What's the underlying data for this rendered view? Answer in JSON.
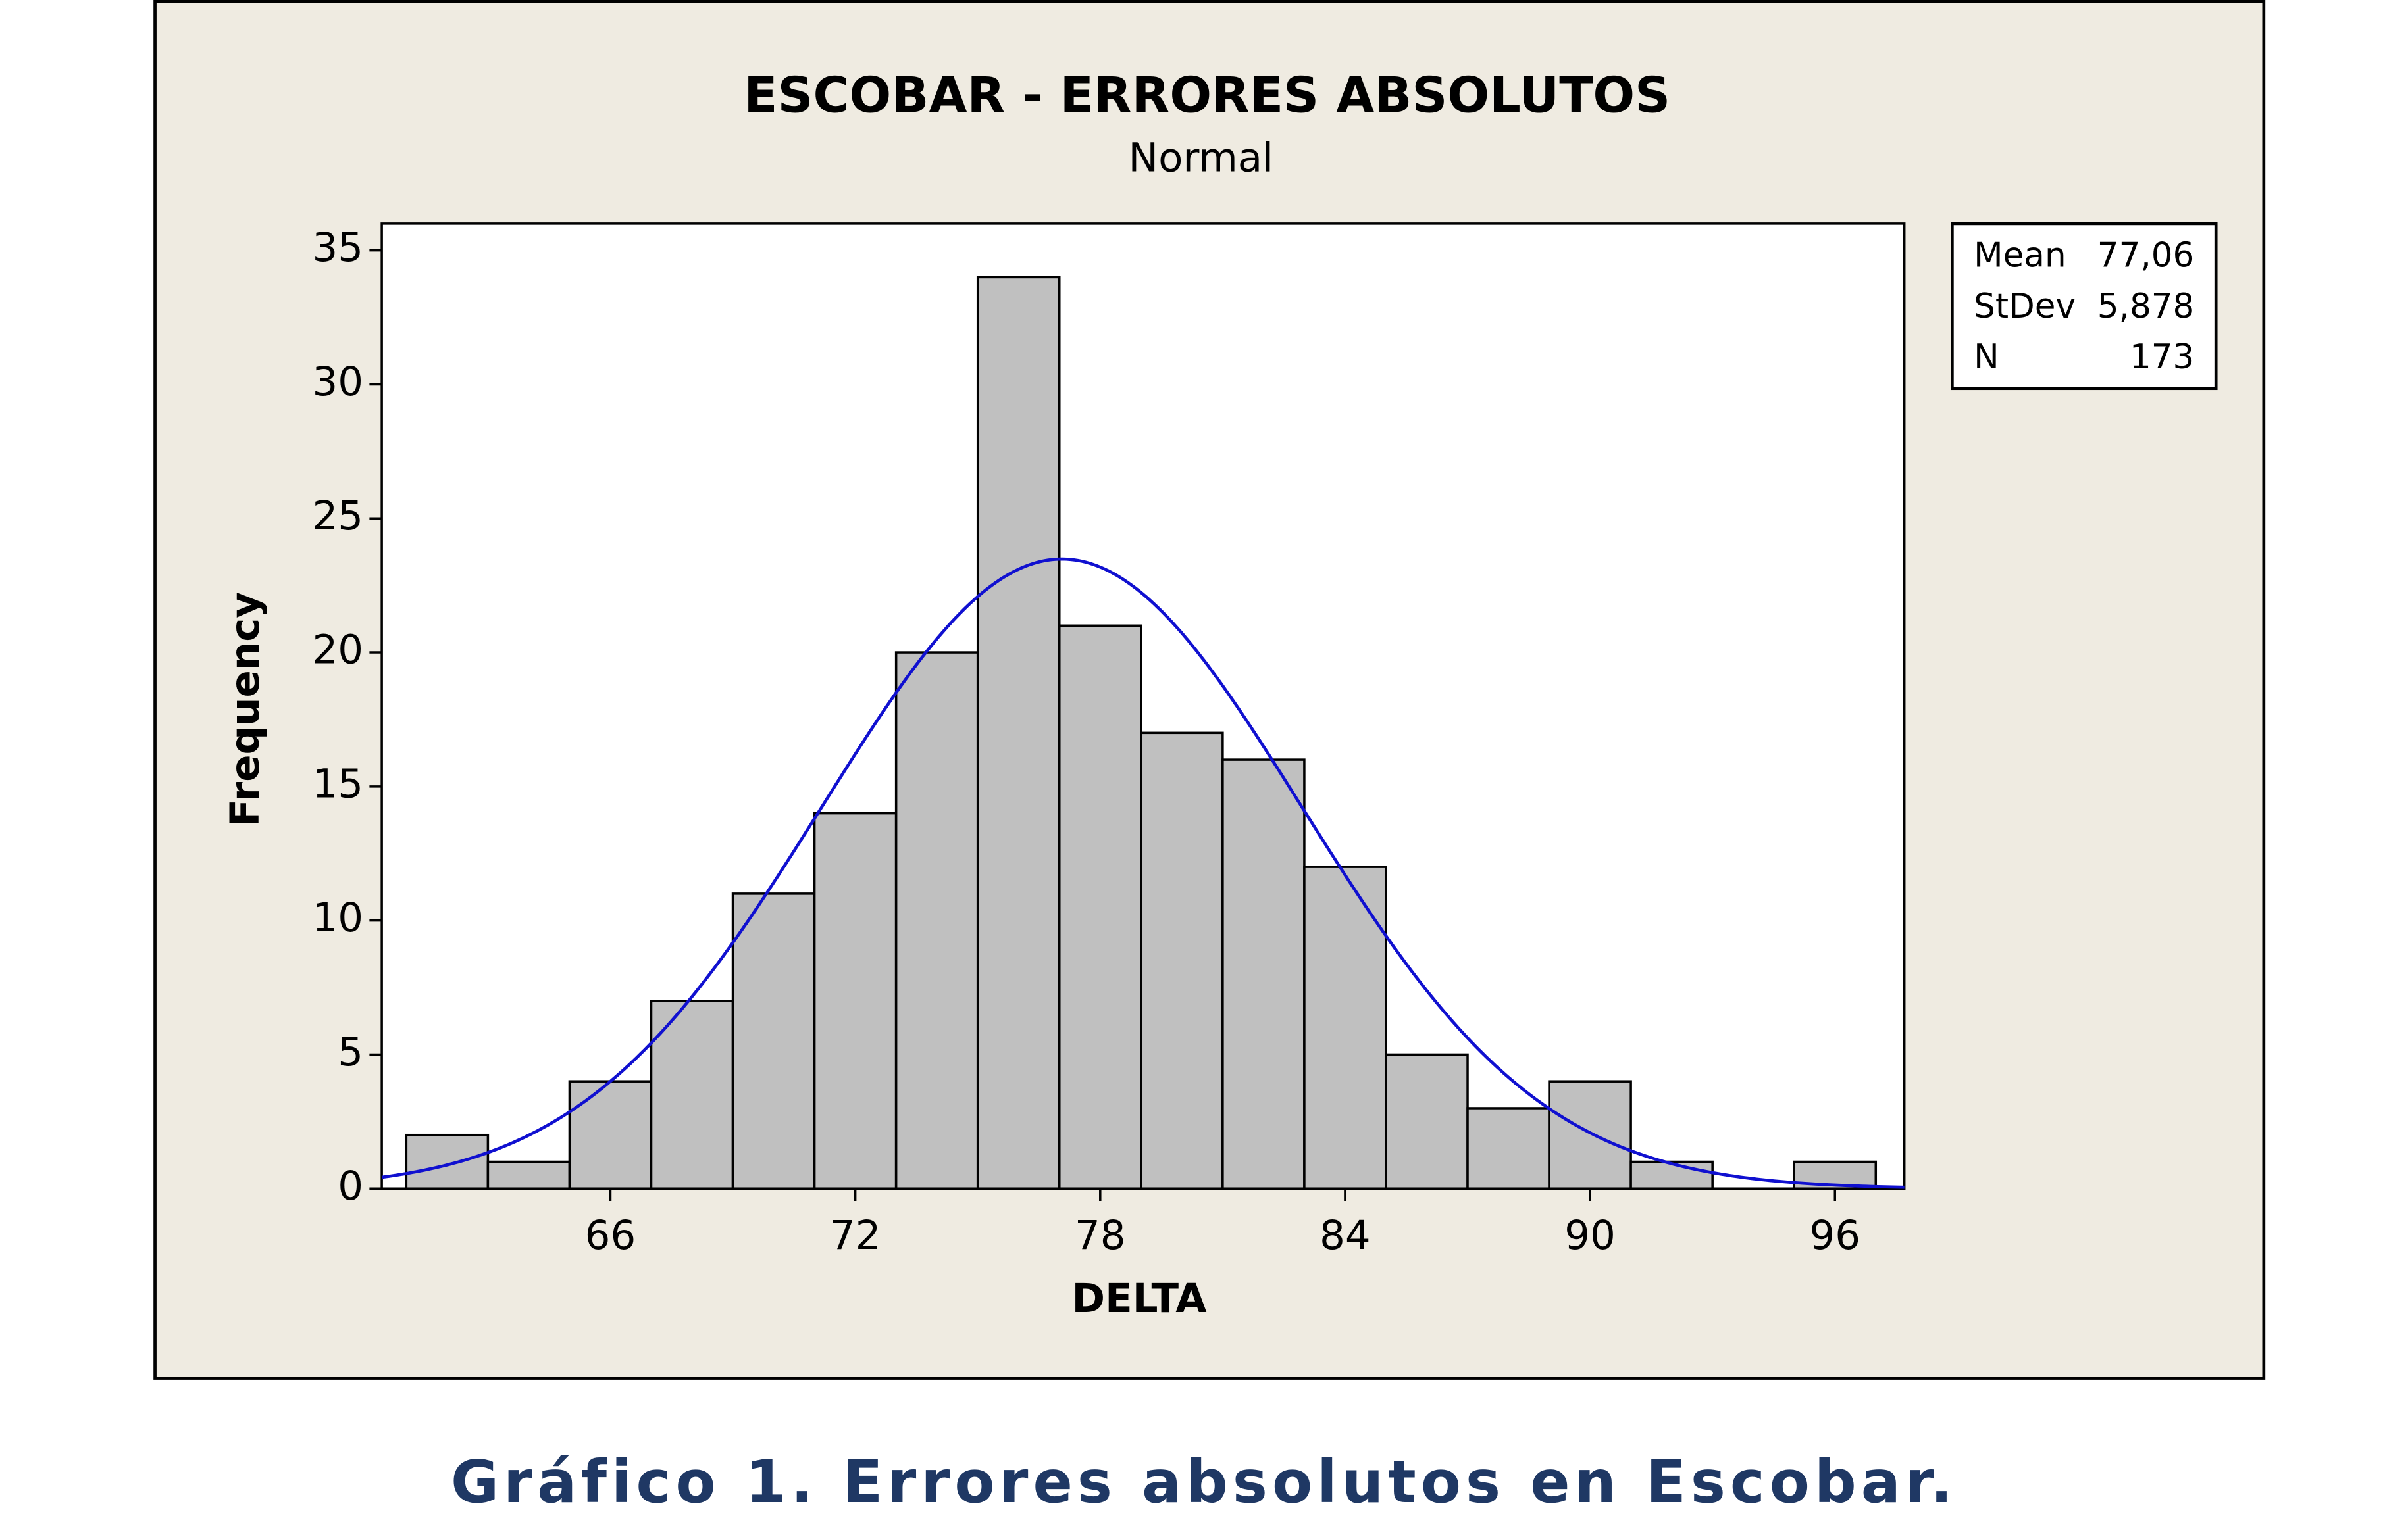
{
  "chart_data": {
    "type": "histogram",
    "title": "ESCOBAR - ERRORES ABSOLUTOS",
    "subtitle": "Normal",
    "x_label": "DELTA",
    "y_label": "Frequency",
    "bins": [
      61,
      63,
      65,
      67,
      69,
      71,
      73,
      75,
      77,
      79,
      81,
      83,
      85,
      87,
      89,
      91,
      93,
      95,
      97
    ],
    "values": [
      2,
      1,
      4,
      7,
      11,
      14,
      20,
      34,
      21,
      17,
      16,
      12,
      5,
      3,
      4,
      1,
      0,
      1
    ],
    "color": "#c0c0c0",
    "curve_color": "#1010d0",
    "xlim": [
      60.4,
      97.7
    ],
    "ylim": [
      0,
      36
    ],
    "xticks": [
      66,
      72,
      78,
      84,
      90,
      96
    ],
    "yticks": [
      0,
      5,
      10,
      15,
      20,
      25,
      30,
      35
    ],
    "stats": [
      {
        "name": "Mean",
        "value": 77.06,
        "label": "77,06"
      },
      {
        "name": "StDev",
        "value": 5.878,
        "label": "5,878"
      },
      {
        "name": "N",
        "value": 173,
        "label": "173"
      }
    ]
  },
  "caption": "Gráfico 1. Errores absolutos en Escobar."
}
